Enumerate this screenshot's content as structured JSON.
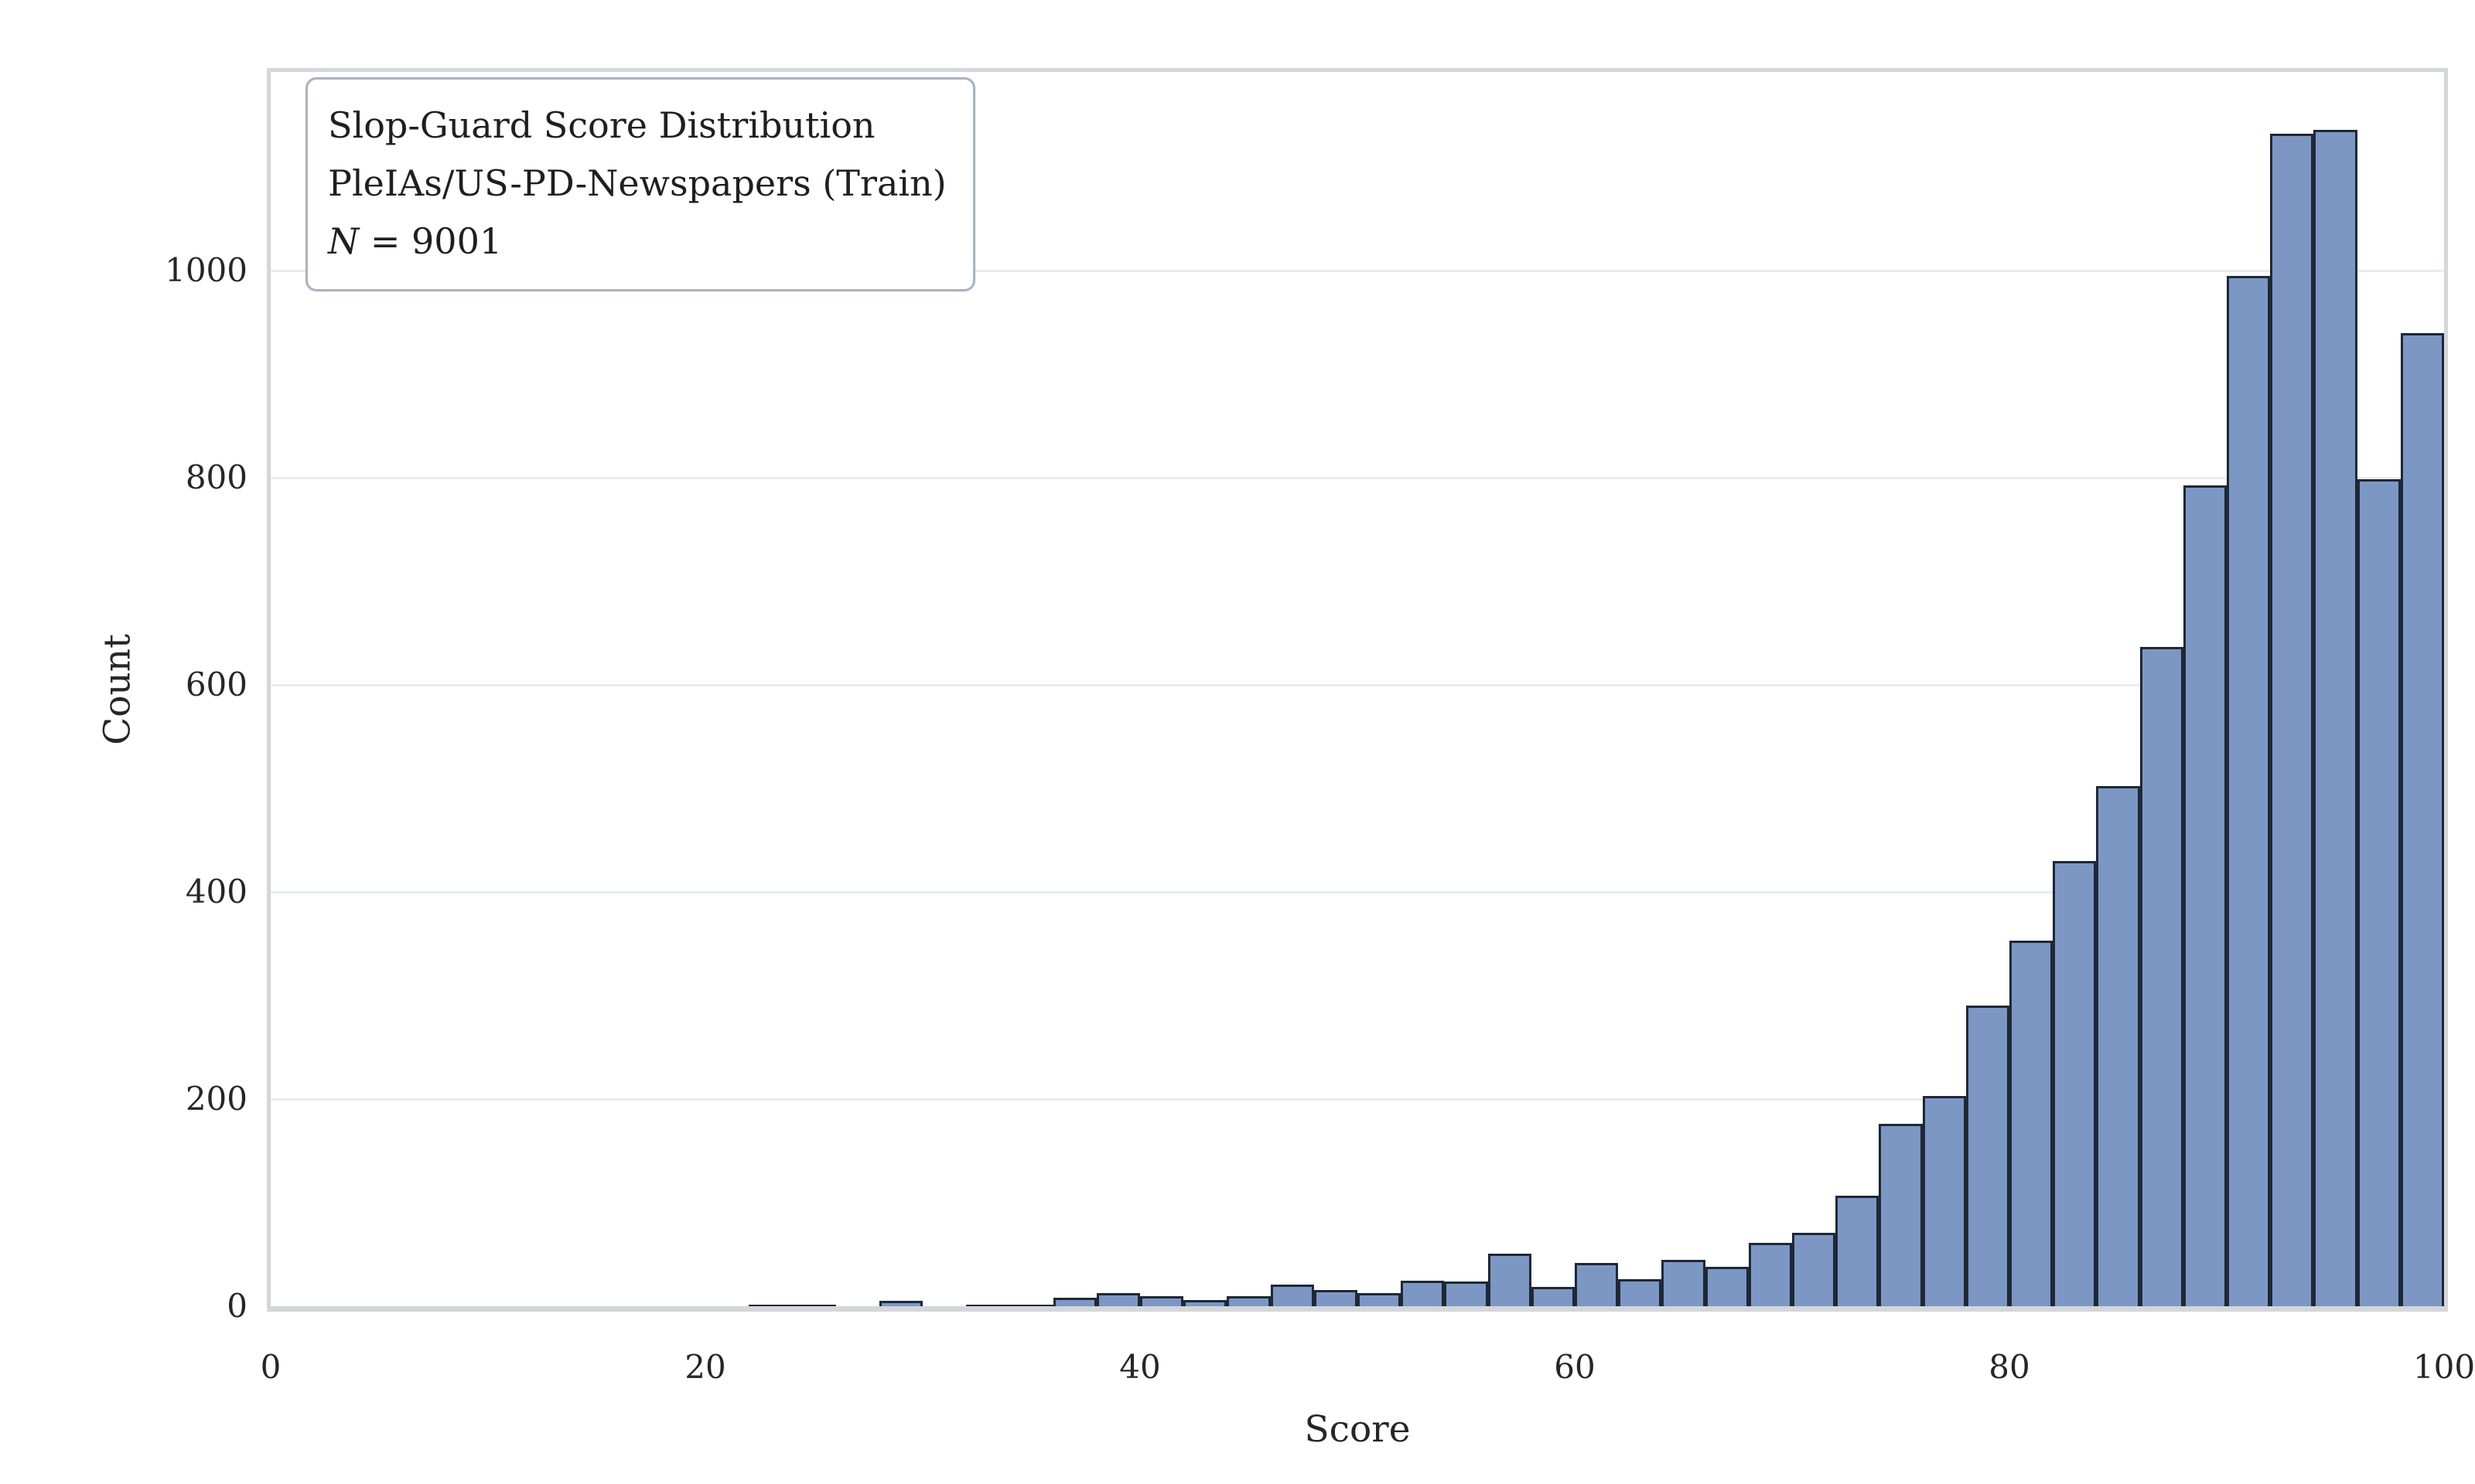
{
  "chart_data": {
    "type": "bar",
    "subtype": "histogram",
    "title": "Slop-Guard Score Distribution",
    "subtitle": "PleIAs/US-PD-Newspapers (Train)",
    "sample_size": {
      "symbol": "N",
      "rest": " = 9001",
      "value": 9001
    },
    "xlabel": "Score",
    "ylabel": "Count",
    "xlim": [
      0,
      100
    ],
    "ylim": [
      0,
      1192
    ],
    "x_ticks": [
      0,
      20,
      40,
      60,
      80,
      100
    ],
    "y_ticks": [
      0,
      200,
      400,
      600,
      800,
      1000
    ],
    "grid": "horizontal-only",
    "legend_position": "upper-left",
    "bin_width": 2,
    "bins": [
      [
        22,
        1
      ],
      [
        24,
        1
      ],
      [
        28,
        5
      ],
      [
        32,
        1
      ],
      [
        34,
        1
      ],
      [
        36,
        8
      ],
      [
        38,
        13
      ],
      [
        40,
        10
      ],
      [
        42,
        6
      ],
      [
        44,
        10
      ],
      [
        46,
        21
      ],
      [
        48,
        16
      ],
      [
        50,
        13
      ],
      [
        52,
        25
      ],
      [
        54,
        24
      ],
      [
        56,
        51
      ],
      [
        58,
        19
      ],
      [
        60,
        42
      ],
      [
        62,
        26
      ],
      [
        64,
        45
      ],
      [
        66,
        38
      ],
      [
        68,
        61
      ],
      [
        70,
        71
      ],
      [
        72,
        107
      ],
      [
        74,
        176
      ],
      [
        76,
        203
      ],
      [
        78,
        290
      ],
      [
        80,
        353
      ],
      [
        82,
        430
      ],
      [
        84,
        502
      ],
      [
        86,
        637
      ],
      [
        88,
        793
      ],
      [
        90,
        995
      ],
      [
        92,
        1132
      ],
      [
        94,
        1136
      ],
      [
        96,
        799
      ],
      [
        98,
        940
      ]
    ],
    "colors": {
      "background": "#ffffff",
      "bar_fill": "#7d97c4",
      "bar_edge": "#1e2836",
      "gridline": "#e9ecf2",
      "spine": "#d4d6da",
      "text": "#262626",
      "legend_border": "#a9b3c4"
    }
  }
}
